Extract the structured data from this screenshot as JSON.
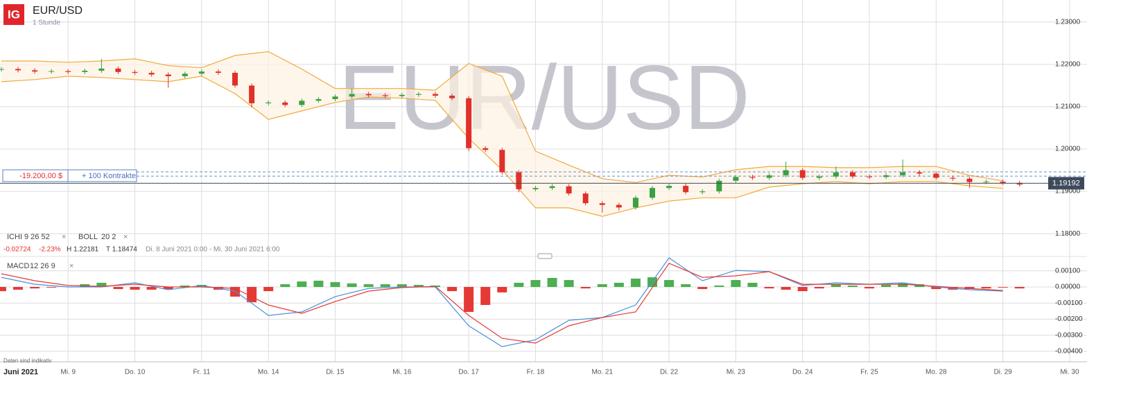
{
  "chart_data": [
    {
      "type": "candlestick",
      "logo": "IG",
      "title": "EUR/USD",
      "subtitle": "1 Stunde",
      "watermark": "EUR/USD",
      "xlim": [
        -1.02,
        15.26
      ],
      "ylim": [
        1.1779,
        1.2352
      ],
      "yticks": [
        {
          "value": 1.18,
          "label": "1.18000"
        },
        {
          "value": 1.19,
          "label": "1.19000"
        },
        {
          "value": 1.2,
          "label": "1.20000"
        },
        {
          "value": 1.21,
          "label": "1.21000"
        },
        {
          "value": 1.22,
          "label": "1.22000"
        },
        {
          "value": 1.23,
          "label": "1.23000"
        }
      ],
      "grid": true,
      "up_color": "#3aa040",
      "down_color": "#e0302a",
      "x": [
        -1,
        -0.75,
        -0.5,
        -0.25,
        0,
        0.25,
        0.5,
        0.75,
        1,
        1.25,
        1.5,
        1.75,
        2,
        2.25,
        2.5,
        2.75,
        3,
        3.25,
        3.5,
        3.75,
        4,
        4.25,
        4.5,
        4.75,
        5,
        5.25,
        5.5,
        5.75,
        6,
        6.25,
        6.5,
        6.75,
        7,
        7.25,
        7.5,
        7.75,
        8,
        8.25,
        8.5,
        8.75,
        9,
        9.25,
        9.5,
        9.75,
        10,
        10.25,
        10.5,
        10.75,
        11,
        11.25,
        11.5,
        11.75,
        12,
        12.25,
        12.5,
        12.75,
        13,
        13.25,
        13.5,
        13.75,
        14,
        14.25
      ],
      "open": [
        1.2188,
        1.2189,
        1.2186,
        1.2183,
        1.2184,
        1.2182,
        1.2185,
        1.219,
        1.2182,
        1.218,
        1.2176,
        1.2172,
        1.2178,
        1.2183,
        1.218,
        1.215,
        1.2108,
        1.211,
        1.2104,
        1.2114,
        1.2118,
        1.2124,
        1.213,
        1.2127,
        1.2125,
        1.2128,
        1.213,
        1.2126,
        1.212,
        1.2002,
        1.1998,
        1.1945,
        1.1905,
        1.1908,
        1.1912,
        1.1895,
        1.1872,
        1.1868,
        1.1862,
        1.1885,
        1.1908,
        1.1913,
        1.1898,
        1.19,
        1.1925,
        1.1934,
        1.1932,
        1.1938,
        1.195,
        1.1932,
        1.1935,
        1.1945,
        1.1935,
        1.1934,
        1.1938,
        1.1945,
        1.1942,
        1.1932,
        1.193,
        1.1922,
        1.1923,
        1.192
      ],
      "high": [
        1.2194,
        1.2194,
        1.2191,
        1.2189,
        1.2189,
        1.219,
        1.2213,
        1.2195,
        1.2187,
        1.2185,
        1.2181,
        1.2183,
        1.2188,
        1.2188,
        1.2185,
        1.2155,
        1.2115,
        1.2115,
        1.2119,
        1.2123,
        1.2129,
        1.2143,
        1.2135,
        1.2132,
        1.2133,
        1.2135,
        1.2135,
        1.2131,
        1.2125,
        1.2007,
        1.2003,
        1.195,
        1.1913,
        1.1917,
        1.1917,
        1.19,
        1.1877,
        1.1873,
        1.189,
        1.1913,
        1.1918,
        1.1918,
        1.1905,
        1.193,
        1.1939,
        1.1939,
        1.1943,
        1.197,
        1.1955,
        1.194,
        1.1959,
        1.195,
        1.194,
        1.1943,
        1.1975,
        1.195,
        1.1947,
        1.1937,
        1.1935,
        1.1928,
        1.1928,
        1.1925
      ],
      "low": [
        1.2183,
        1.2181,
        1.2178,
        1.2178,
        1.2177,
        1.2177,
        1.218,
        1.2177,
        1.2175,
        1.2171,
        1.2145,
        1.2167,
        1.2173,
        1.2175,
        1.2145,
        1.2098,
        1.2103,
        1.2099,
        1.2099,
        1.2109,
        1.2113,
        1.2119,
        1.2122,
        1.212,
        1.212,
        1.2123,
        1.2121,
        1.2115,
        1.1995,
        1.1993,
        1.194,
        1.1898,
        1.19,
        1.1903,
        1.189,
        1.1867,
        1.185,
        1.1855,
        1.1857,
        1.188,
        1.1903,
        1.1893,
        1.1893,
        1.1895,
        1.192,
        1.1927,
        1.1927,
        1.1933,
        1.1927,
        1.1927,
        1.193,
        1.193,
        1.1929,
        1.1929,
        1.1933,
        1.1937,
        1.1927,
        1.1925,
        1.1908,
        1.1917,
        1.1915,
        1.1911
      ],
      "close": [
        1.2189,
        1.2186,
        1.2183,
        1.2184,
        1.2182,
        1.2185,
        1.219,
        1.2182,
        1.218,
        1.2176,
        1.2172,
        1.2178,
        1.2183,
        1.218,
        1.215,
        1.2108,
        1.211,
        1.2104,
        1.2114,
        1.2118,
        1.2124,
        1.213,
        1.2127,
        1.2125,
        1.2128,
        1.213,
        1.2126,
        1.212,
        1.2002,
        1.1998,
        1.1945,
        1.1905,
        1.1908,
        1.1912,
        1.1895,
        1.1872,
        1.1868,
        1.1862,
        1.1885,
        1.1908,
        1.1913,
        1.1898,
        1.19,
        1.1925,
        1.1934,
        1.1932,
        1.1938,
        1.195,
        1.1932,
        1.1935,
        1.1945,
        1.1935,
        1.1934,
        1.1938,
        1.1945,
        1.1942,
        1.1932,
        1.193,
        1.1922,
        1.1923,
        1.192,
        1.1916
      ],
      "band_x": [
        -1,
        -0.5,
        0,
        0.5,
        1,
        1.5,
        2,
        2.5,
        3,
        3.5,
        4,
        4.5,
        5,
        5.5,
        6,
        6.5,
        7,
        7.5,
        8,
        8.5,
        9,
        9.5,
        10,
        10.5,
        11,
        11.5,
        12,
        12.5,
        13,
        13.5,
        14
      ],
      "band_fill": "#fdf2e2",
      "overlays": [
        {
          "color": "#f2a93b",
          "values": [
            1.2208,
            1.2208,
            1.2205,
            1.2208,
            1.2213,
            1.2197,
            1.2192,
            1.2221,
            1.223,
            1.2189,
            1.2143,
            1.2143,
            1.2143,
            1.2139,
            1.2202,
            1.2172,
            1.1995,
            1.1962,
            1.193,
            1.1921,
            1.1938,
            1.1934,
            1.1951,
            1.1959,
            1.1959,
            1.1956,
            1.1956,
            1.1959,
            1.1959,
            1.1938,
            1.1925
          ]
        },
        {
          "color": "#f2a93b",
          "values": [
            1.2159,
            1.2164,
            1.2172,
            1.2169,
            1.2164,
            1.2159,
            1.2172,
            1.2131,
            1.207,
            1.209,
            1.211,
            1.2123,
            1.212,
            1.2115,
            1.2025,
            1.1951,
            1.1861,
            1.1861,
            1.1841,
            1.1861,
            1.1877,
            1.1885,
            1.1885,
            1.191,
            1.1918,
            1.1923,
            1.1918,
            1.1923,
            1.1923,
            1.1913,
            1.1907
          ]
        }
      ],
      "reference_lines": [
        1.1946,
        1.1936
      ],
      "position": {
        "pnl": "-19.200,00 $",
        "size": "+ 100 Kontrakte"
      },
      "current_price": {
        "value": 1.19192,
        "label": "1.19192"
      },
      "indicators": [
        {
          "name": "ICHI",
          "params": "9 26 52",
          "close": "×"
        },
        {
          "name": "BOLL",
          "params": "20 2",
          "close": "×"
        }
      ],
      "stats": {
        "change": "-0.02724",
        "change_pct": "-2.23%",
        "high": "H 1.22181",
        "low": "T 1.18474",
        "range": "Di. 8 Juni 2021 0:00 - Mi. 30 Juni 2021 6:00"
      }
    },
    {
      "type": "macd",
      "name": "MACD",
      "params": "12 26 9",
      "close": "×",
      "xlim": [
        -1.02,
        15.26
      ],
      "ylim": [
        -0.00435,
        0.00168
      ],
      "yticks": [
        {
          "value": -0.004,
          "label": "-0.00400"
        },
        {
          "value": -0.003,
          "label": "-0.00300"
        },
        {
          "value": -0.002,
          "label": "-0.00200"
        },
        {
          "value": -0.001,
          "label": "-0.00100"
        },
        {
          "value": 0,
          "label": "0.00000"
        },
        {
          "value": 0.001,
          "label": "0.00100"
        }
      ],
      "xticks": [
        {
          "value": 0,
          "label": "Mi. 9"
        },
        {
          "value": 1,
          "label": "Do. 10"
        },
        {
          "value": 2,
          "label": "Fr. 11"
        },
        {
          "value": 3,
          "label": "Mo. 14"
        },
        {
          "value": 4,
          "label": "Di. 15"
        },
        {
          "value": 5,
          "label": "Mi. 16"
        },
        {
          "value": 6,
          "label": "Do. 17"
        },
        {
          "value": 7,
          "label": "Fr. 18"
        },
        {
          "value": 8,
          "label": "Mo. 21"
        },
        {
          "value": 9,
          "label": "Di. 22"
        },
        {
          "value": 10,
          "label": "Mi. 23"
        },
        {
          "value": 11,
          "label": "Do. 24"
        },
        {
          "value": 12,
          "label": "Fr. 25"
        },
        {
          "value": 13,
          "label": "Mo. 28"
        },
        {
          "value": 14,
          "label": "Di. 29"
        },
        {
          "value": 15,
          "label": "Mi. 30"
        }
      ],
      "month_label": "Juni 2021",
      "footnote": "Daten sind indikativ",
      "series": [
        {
          "color": "#4a90d9",
          "values": [
            0.0006,
            0.00017,
            0,
            0,
            0.00026,
            -0.00017,
            9e-05,
            -0.00026,
            -0.00177,
            -0.00155,
            -0.0006,
            -9e-05,
            0,
            0,
            -0.00241,
            -0.00371,
            -0.00328,
            -0.00207,
            -0.0019,
            -0.00112,
            0.00181,
            0.00039,
            0.00103,
            0.00095,
            9e-05,
            0.00026,
            0.00017,
            0.00026,
            0,
            -0.00017,
            -0.00026
          ]
        },
        {
          "color": "#e53935",
          "values": [
            0.00082,
            0.00039,
            9e-05,
            4e-05,
            0.00017,
            0,
            0,
            -9e-05,
            -0.00112,
            -0.00164,
            -0.00091,
            -0.00026,
            -4e-05,
            4e-05,
            -0.00177,
            -0.00319,
            -0.00349,
            -0.00241,
            -0.0019,
            -0.00155,
            0.00147,
            0.0006,
            0.00069,
            0.00095,
            0.00017,
            0.00017,
            0.00017,
            0.00017,
            4e-05,
            -9e-05,
            -0.00022
          ]
        }
      ],
      "histogram": [
        -0.00026,
        -0.00017,
        -9e-05,
        -4e-05,
        0,
        0.00017,
        0.00026,
        -0.00013,
        -0.00017,
        -0.00017,
        -0.00013,
        9e-05,
        0.00013,
        -0.00017,
        -0.0006,
        -0.00095,
        -0.00026,
        0.00017,
        0.00034,
        0.00039,
        0.0003,
        0.00022,
        0.00017,
        0.00017,
        0.00017,
        0.00013,
        9e-05,
        -0.00026,
        -0.00155,
        -0.00112,
        -0.00034,
        0.00026,
        0.00043,
        0.00056,
        0.00043,
        -9e-05,
        0.00017,
        0.00026,
        0.00052,
        0.0006,
        0.00043,
        0.00017,
        -0.00013,
        9e-05,
        0.00043,
        0.00026,
        -9e-05,
        -0.00017,
        -0.00026,
        -9e-05,
        0.00017,
        9e-05,
        -9e-05,
        0.00013,
        0.00022,
        0.00017,
        -0.00013,
        -0.00017,
        -0.00013,
        -9e-05,
        -4e-05,
        -9e-05
      ],
      "hist_up_color": "#4caf50",
      "hist_down_color": "#e53935"
    }
  ]
}
